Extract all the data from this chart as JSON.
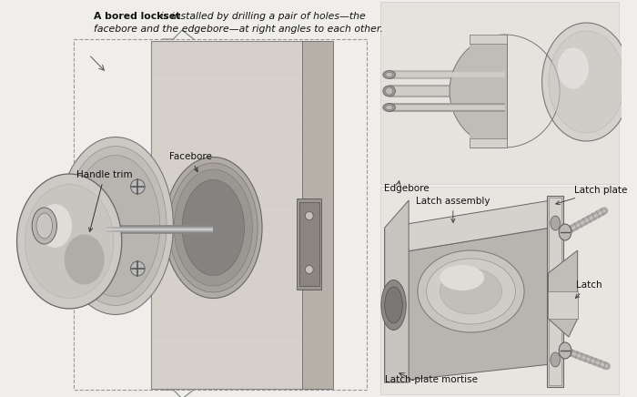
{
  "bg": "#f0eeea",
  "fig_width": 7.0,
  "fig_height": 4.36,
  "dpi": 100,
  "title_line1_bold": "A bored lockset",
  "title_line1_italic": " is installed by drilling a pair of holes—the",
  "title_line2": "facebore and the edgebore—at right angles to each other.",
  "label_fontsize": 7.5,
  "gray_light": "#d8d5cf",
  "gray_mid": "#b8b5b0",
  "gray_dark": "#888480",
  "gray_darker": "#666360",
  "white": "#f5f4f2",
  "near_white": "#e8e5e0"
}
